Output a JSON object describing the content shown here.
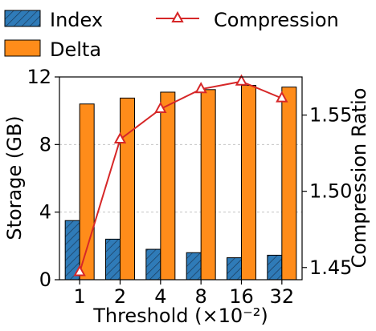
{
  "chart_data": {
    "type": "bar",
    "title": "",
    "categories": [
      "1",
      "2",
      "4",
      "8",
      "16",
      "32"
    ],
    "xlabel": "Threshold (×10⁻²)",
    "ylabel": "Storage (GB)",
    "y2label": "Compression Ratio",
    "ylim": [
      0,
      12
    ],
    "yticks": [
      "0",
      "4",
      "8",
      "12"
    ],
    "y2lim": [
      1.442,
      1.575
    ],
    "y2ticks": [
      "1.45",
      "1.50",
      "1.55"
    ],
    "grid": "horizontal dashed",
    "legend_position": "top, above plot",
    "series": [
      {
        "name": "Index",
        "kind": "bar",
        "axis": "left",
        "color": "#2f7bb8",
        "hatch": "diagonal",
        "values": [
          3.5,
          2.4,
          1.8,
          1.6,
          1.3,
          1.45
        ]
      },
      {
        "name": "Delta",
        "kind": "bar",
        "axis": "left",
        "color": "#ff8c1a",
        "values": [
          10.4,
          10.75,
          11.1,
          11.25,
          11.5,
          11.4
        ]
      },
      {
        "name": "Compression",
        "kind": "line",
        "axis": "right",
        "color": "#d62728",
        "marker": "triangle-open",
        "values": [
          1.447,
          1.534,
          1.554,
          1.567,
          1.572,
          1.561
        ]
      }
    ]
  }
}
